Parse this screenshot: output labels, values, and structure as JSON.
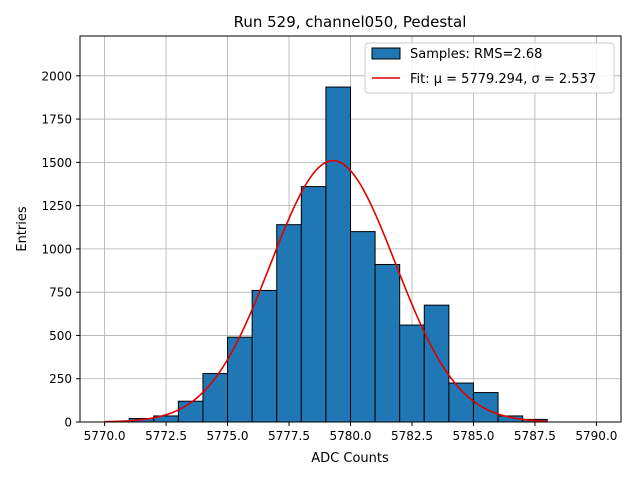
{
  "chart_data": {
    "type": "bar",
    "title": "Run 529, channel050, Pedestal",
    "xlabel": "ADC Counts",
    "ylabel": "Entries",
    "xlim": [
      5769.0,
      5791.0
    ],
    "ylim": [
      0,
      2230
    ],
    "xticks": [
      5770.0,
      5772.5,
      5775.0,
      5777.5,
      5780.0,
      5782.5,
      5785.0,
      5787.5,
      5790.0
    ],
    "xtick_labels": [
      "5770.0",
      "5772.5",
      "5775.0",
      "5777.5",
      "5780.0",
      "5782.5",
      "5785.0",
      "5787.5",
      "5790.0"
    ],
    "yticks": [
      0,
      250,
      500,
      750,
      1000,
      1250,
      1500,
      1750,
      2000
    ],
    "ytick_labels": [
      "0",
      "250",
      "500",
      "750",
      "1000",
      "1250",
      "1500",
      "1750",
      "2000"
    ],
    "grid": true,
    "legend_position": "top-right",
    "bin_width": 1,
    "bins": [
      {
        "x0": 5771,
        "count": 20
      },
      {
        "x0": 5772,
        "count": 35
      },
      {
        "x0": 5773,
        "count": 120
      },
      {
        "x0": 5774,
        "count": 280
      },
      {
        "x0": 5775,
        "count": 490
      },
      {
        "x0": 5776,
        "count": 760
      },
      {
        "x0": 5777,
        "count": 1140
      },
      {
        "x0": 5778,
        "count": 1360
      },
      {
        "x0": 5779,
        "count": 1935
      },
      {
        "x0": 5780,
        "count": 1100
      },
      {
        "x0": 5781,
        "count": 910
      },
      {
        "x0": 5782,
        "count": 560
      },
      {
        "x0": 5783,
        "count": 675
      },
      {
        "x0": 5784,
        "count": 225
      },
      {
        "x0": 5785,
        "count": 170
      },
      {
        "x0": 5786,
        "count": 35
      },
      {
        "x0": 5787,
        "count": 15
      }
    ],
    "fit": {
      "mu": 5779.294,
      "sigma": 2.537,
      "amplitude": 1510,
      "x_start": 5770.0,
      "x_end": 5788.0
    },
    "series": [
      {
        "name": "Samples: RMS=2.68",
        "kind": "histogram",
        "color": "#1f77b4"
      },
      {
        "name": "Fit: μ = 5779.294, σ = 2.537",
        "kind": "line",
        "color": "#e00000"
      }
    ]
  }
}
